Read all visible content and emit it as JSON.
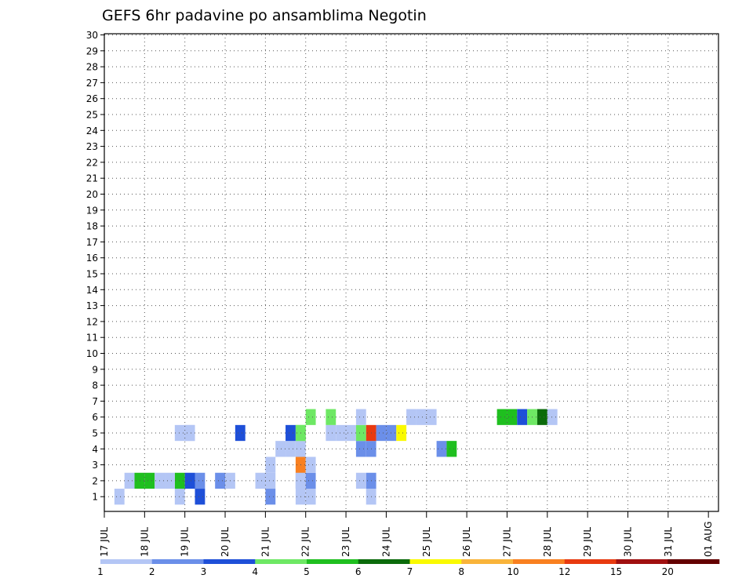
{
  "chart_data": {
    "type": "heatmap",
    "title": "GEFS 6hr padavine po ansamblima Negotin",
    "xlabel": "",
    "ylabel": "",
    "x_tick_labels": [
      "17 JUL",
      "18 JUL",
      "19 JUL",
      "20 JUL",
      "21 JUL",
      "22 JUL",
      "23 JUL",
      "24 JUL",
      "25 JUL",
      "26 JUL",
      "27 JUL",
      "28 JUL",
      "29 JUL",
      "30 JUL",
      "31 JUL",
      "01 AUG"
    ],
    "y_tick_labels": [
      "1",
      "2",
      "3",
      "4",
      "5",
      "6",
      "7",
      "8",
      "9",
      "10",
      "11",
      "12",
      "13",
      "14",
      "15",
      "16",
      "17",
      "18",
      "19",
      "20",
      "21",
      "22",
      "23",
      "24",
      "25",
      "26",
      "27",
      "28",
      "29",
      "30"
    ],
    "ylim": [
      1,
      30
    ],
    "xlim_steps": [
      0,
      61
    ],
    "step_hours": 6,
    "grid": true,
    "color_scale": {
      "labels": [
        "1",
        "2",
        "3",
        "4",
        "5",
        "6",
        "7",
        "8",
        "10",
        "12",
        "15",
        "20"
      ],
      "colors": [
        "#b4c6f5",
        "#6b8fe9",
        "#1e4fd8",
        "#6ee864",
        "#1fbf1f",
        "#0b6b0b",
        "#fafa00",
        "#f9b43a",
        "#f98020",
        "#e83a10",
        "#a01010",
        "#640000"
      ],
      "position": "bottom"
    },
    "cells": [
      [
        1,
        1,
        1
      ],
      [
        7,
        1,
        1
      ],
      [
        9,
        1,
        3
      ],
      [
        16,
        1,
        2
      ],
      [
        19,
        1,
        1
      ],
      [
        20,
        1,
        1
      ],
      [
        26,
        1,
        1
      ],
      [
        2,
        2,
        1
      ],
      [
        11,
        2,
        2
      ],
      [
        12,
        2,
        1
      ],
      [
        19,
        2,
        2
      ],
      [
        20,
        2,
        2
      ],
      [
        26,
        2,
        2
      ],
      [
        3,
        2,
        5
      ],
      [
        9,
        2,
        2
      ],
      [
        15,
        2,
        1
      ],
      [
        16,
        2,
        1
      ],
      [
        19,
        2,
        1
      ],
      [
        25,
        2,
        1
      ],
      [
        4,
        2,
        5
      ],
      [
        7,
        2,
        5
      ],
      [
        8,
        2,
        3
      ],
      [
        16,
        3,
        1
      ],
      [
        19,
        3,
        9
      ],
      [
        20,
        3,
        1
      ],
      [
        5,
        2,
        1
      ],
      [
        19,
        4,
        1
      ],
      [
        25,
        4,
        2
      ],
      [
        18,
        4,
        1
      ],
      [
        26,
        4,
        2
      ],
      [
        33,
        4,
        2
      ],
      [
        34,
        4,
        5
      ],
      [
        6,
        2,
        1
      ],
      [
        17,
        4,
        1
      ],
      [
        22,
        5,
        1
      ],
      [
        23,
        5,
        1
      ],
      [
        24,
        5,
        1
      ],
      [
        25,
        5,
        4
      ],
      [
        26,
        5,
        10
      ],
      [
        27,
        5,
        2
      ],
      [
        28,
        5,
        2
      ],
      [
        29,
        5,
        7
      ],
      [
        7,
        5,
        1
      ],
      [
        8,
        5,
        1
      ],
      [
        13,
        5,
        3
      ],
      [
        19,
        5,
        4
      ],
      [
        8,
        5,
        1
      ],
      [
        18,
        5,
        3
      ],
      [
        19,
        5,
        4
      ],
      [
        20,
        6,
        4
      ],
      [
        22,
        6,
        4
      ],
      [
        25,
        6,
        1
      ],
      [
        30,
        6,
        1
      ],
      [
        31,
        6,
        1
      ],
      [
        32,
        6,
        1
      ],
      [
        39,
        6,
        5
      ],
      [
        40,
        6,
        5
      ],
      [
        41,
        6,
        3
      ],
      [
        42,
        6,
        4
      ],
      [
        43,
        6,
        6
      ],
      [
        44,
        6,
        1
      ]
    ]
  }
}
